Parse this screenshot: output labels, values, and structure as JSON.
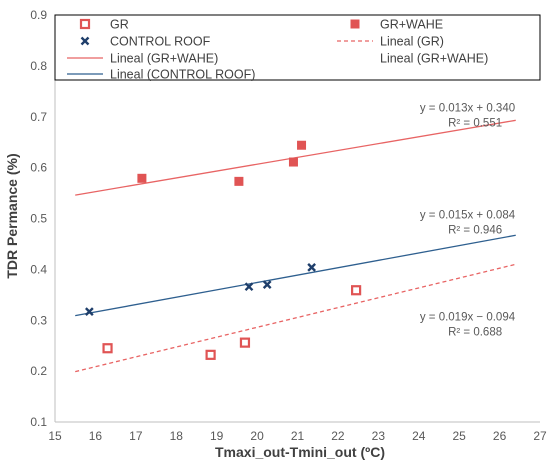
{
  "chart_data": {
    "type": "scatter",
    "xlabel": "Tmaxi_out-Tmini_out (ºC)",
    "ylabel": "TDR Permance (%)",
    "xlim": [
      15,
      27
    ],
    "ylim": [
      0.1,
      0.9
    ],
    "x_ticks": [
      15,
      16,
      17,
      18,
      19,
      20,
      21,
      22,
      23,
      24,
      25,
      26,
      27
    ],
    "y_ticks": [
      0.1,
      0.2,
      0.3,
      0.4,
      0.5,
      0.6,
      0.7,
      0.8,
      0.9
    ],
    "grid": false,
    "legend_position": "top",
    "series": [
      {
        "name": "GR",
        "marker": "hollow-square",
        "color": "#e05454",
        "points": [
          [
            16.3,
            0.245
          ],
          [
            18.85,
            0.232
          ],
          [
            19.7,
            0.256
          ],
          [
            22.45,
            0.359
          ]
        ]
      },
      {
        "name": "GR+WAHE",
        "marker": "filled-square",
        "color": "#e05454",
        "points": [
          [
            17.15,
            0.579
          ],
          [
            19.55,
            0.573
          ],
          [
            20.9,
            0.611
          ],
          [
            21.1,
            0.644
          ]
        ]
      },
      {
        "name": "CONTROL ROOF",
        "marker": "x",
        "color": "#1f3f6b",
        "points": [
          [
            15.85,
            0.317
          ],
          [
            19.8,
            0.366
          ],
          [
            20.25,
            0.37
          ],
          [
            21.35,
            0.404
          ]
        ]
      }
    ],
    "trendlines": [
      {
        "name": "Lineal (GR)",
        "style": "dashed",
        "color": "#e86464",
        "x_range": [
          15.5,
          26.4
        ],
        "y_range": [
          0.199,
          0.41
        ],
        "equation": "y = 0.019x − 0.094",
        "r2": "R² = 0.688"
      },
      {
        "name": "Lineal (GR+WAHE)",
        "style": "solid",
        "color": "#e86464",
        "x_range": [
          15.5,
          26.4
        ],
        "y_range": [
          0.546,
          0.693
        ],
        "equation": "y = 0.013x + 0.340",
        "r2": "R² = 0.551"
      },
      {
        "name": "Lineal (CONTROL ROOF)",
        "style": "solid",
        "color": "#2e5f8f",
        "x_range": [
          15.5,
          26.4
        ],
        "y_range": [
          0.309,
          0.467
        ],
        "equation": "y = 0.015x + 0.084",
        "r2": "R² = 0.946"
      }
    ],
    "legend": [
      {
        "label": "GR",
        "symbol": "hollow-square",
        "color": "#e05454"
      },
      {
        "label": "GR+WAHE",
        "symbol": "filled-square",
        "color": "#e05454"
      },
      {
        "label": "CONTROL ROOF",
        "symbol": "x",
        "color": "#1f3f6b"
      },
      {
        "label": "Lineal (GR)",
        "symbol": "dashed-line",
        "color": "#e86464"
      },
      {
        "label": "Lineal (GR+WAHE)",
        "symbol": "solid-line",
        "color": "#e86464"
      },
      {
        "label": "Lineal (GR+WAHE)",
        "symbol": "none",
        "color": "#595959"
      },
      {
        "label": "Lineal (CONTROL ROOF)",
        "symbol": "solid-line",
        "color": "#2e5f8f"
      }
    ]
  }
}
